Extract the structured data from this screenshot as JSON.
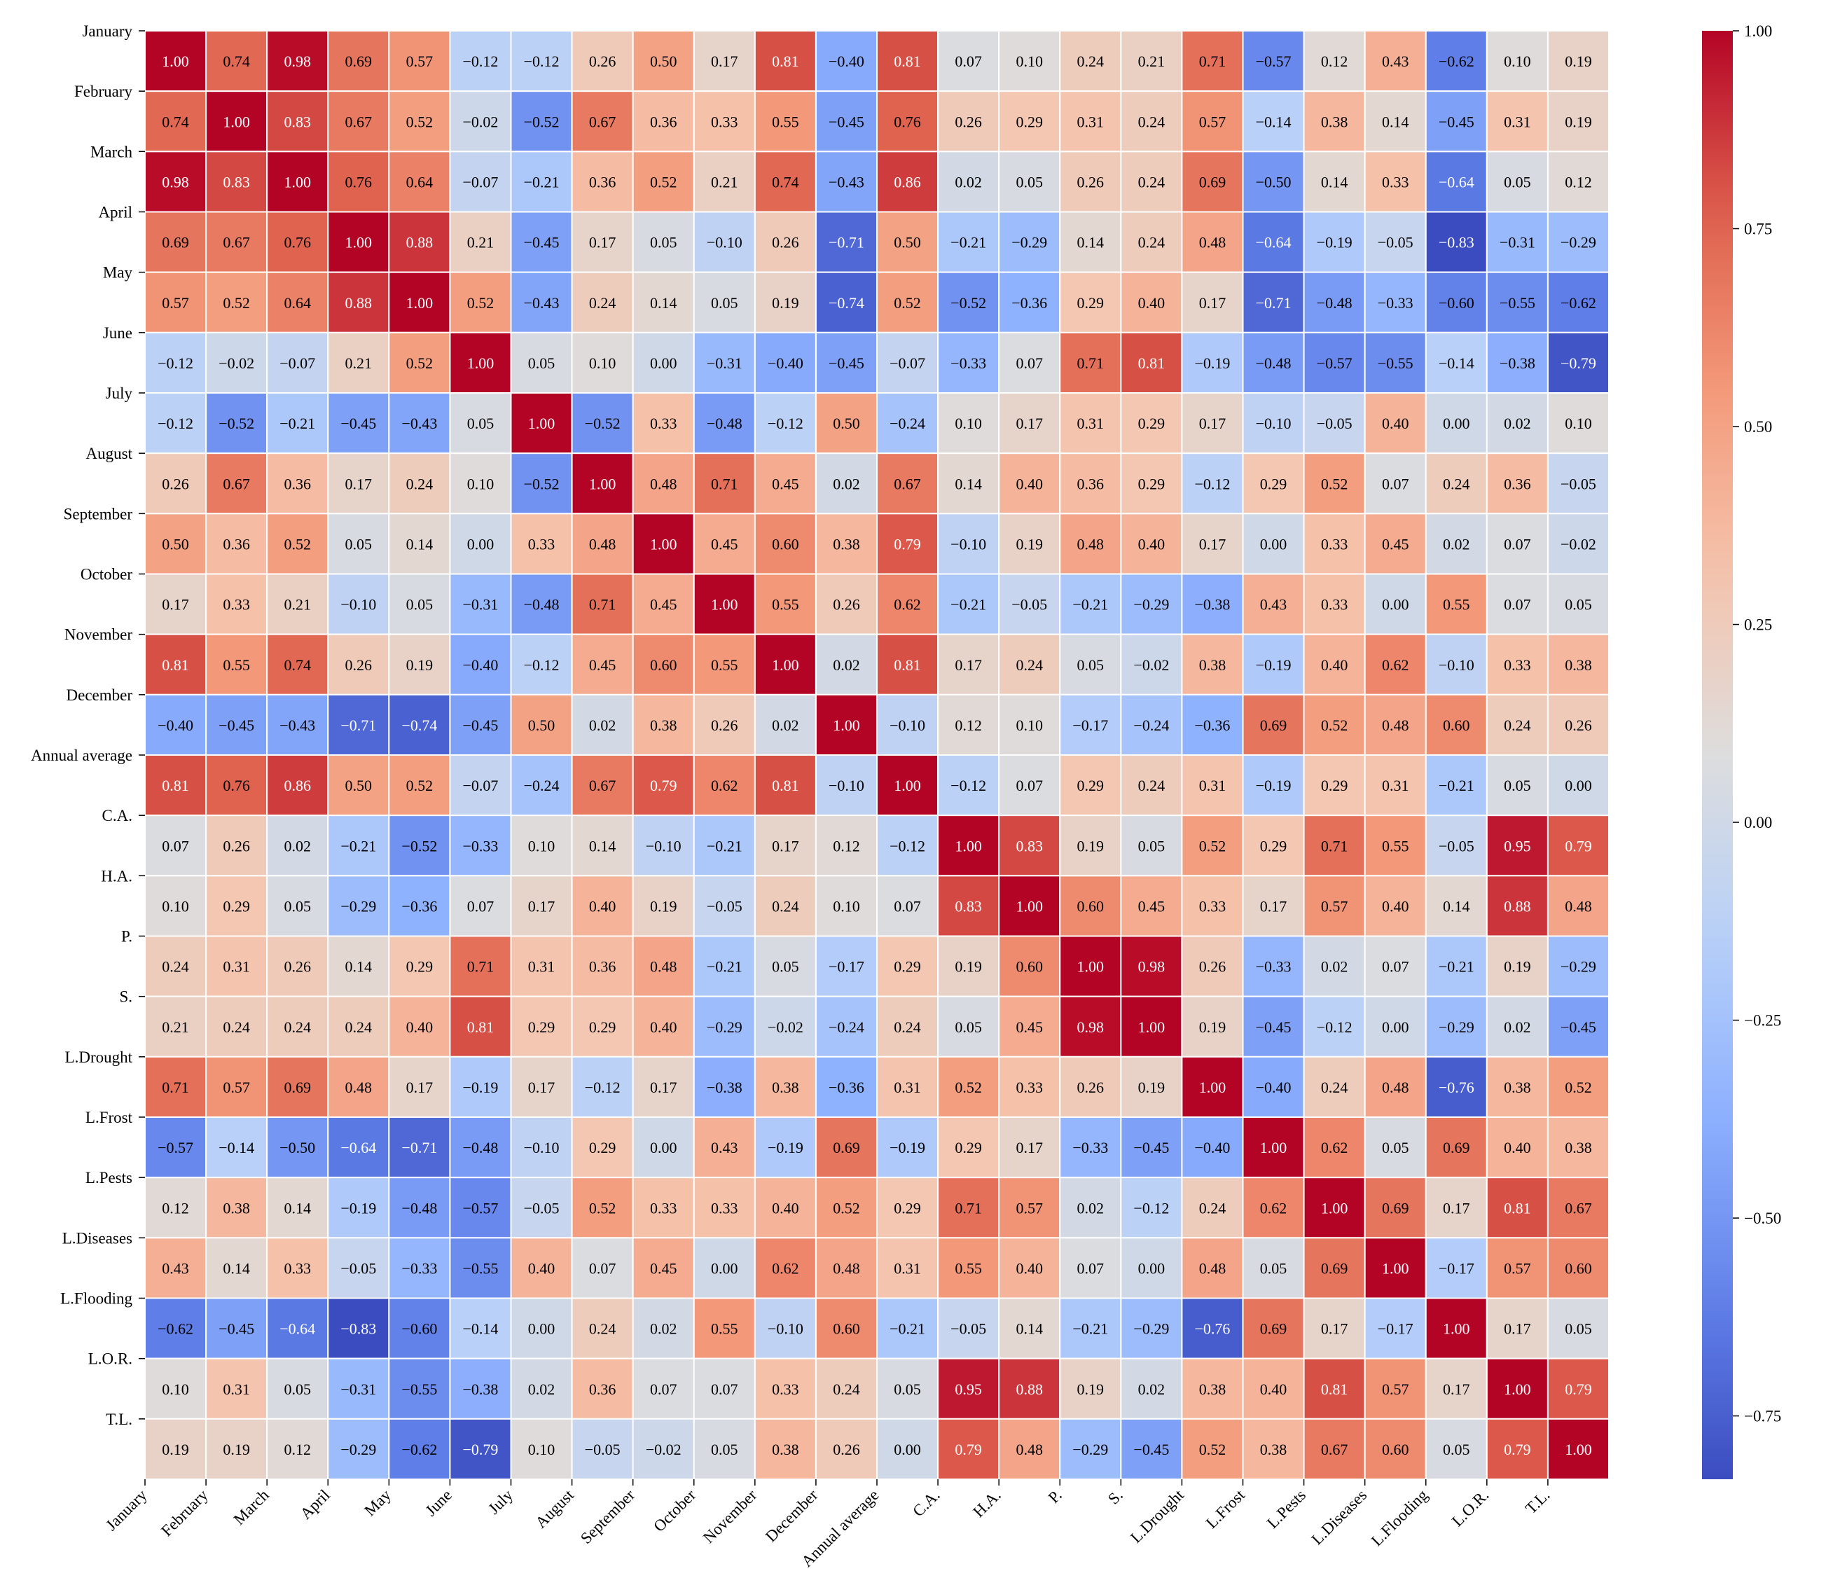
{
  "chart_data": {
    "type": "heatmap",
    "title": "",
    "xlabel": "",
    "ylabel": "",
    "labels": [
      "January",
      "February",
      "March",
      "April",
      "May",
      "June",
      "July",
      "August",
      "September",
      "October",
      "November",
      "December",
      "Annual average",
      "C.A.",
      "H.A.",
      "P.",
      "S.",
      "L.Drought",
      "L.Frost",
      "L.Pests",
      "L.Diseases",
      "L.Flooding",
      "L.O.R.",
      "T.L."
    ],
    "matrix": [
      [
        1.0,
        0.74,
        0.98,
        0.69,
        0.57,
        -0.12,
        -0.12,
        0.26,
        0.5,
        0.17,
        0.81,
        -0.4,
        0.81,
        0.07,
        0.1,
        0.24,
        0.21,
        0.71,
        -0.57,
        0.12,
        0.43,
        -0.62,
        0.1,
        0.19
      ],
      [
        0.74,
        1.0,
        0.83,
        0.67,
        0.52,
        -0.02,
        -0.52,
        0.67,
        0.36,
        0.33,
        0.55,
        -0.45,
        0.76,
        0.26,
        0.29,
        0.31,
        0.24,
        0.57,
        -0.14,
        0.38,
        0.14,
        -0.45,
        0.31,
        0.19
      ],
      [
        0.98,
        0.83,
        1.0,
        0.76,
        0.64,
        -0.07,
        -0.21,
        0.36,
        0.52,
        0.21,
        0.74,
        -0.43,
        0.86,
        0.02,
        0.05,
        0.26,
        0.24,
        0.69,
        -0.5,
        0.14,
        0.33,
        -0.64,
        0.05,
        0.12
      ],
      [
        0.69,
        0.67,
        0.76,
        1.0,
        0.88,
        0.21,
        -0.45,
        0.17,
        0.05,
        -0.1,
        0.26,
        -0.71,
        0.5,
        -0.21,
        -0.29,
        0.14,
        0.24,
        0.48,
        -0.64,
        -0.19,
        -0.05,
        -0.83,
        -0.31,
        -0.29
      ],
      [
        0.57,
        0.52,
        0.64,
        0.88,
        1.0,
        0.52,
        -0.43,
        0.24,
        0.14,
        0.05,
        0.19,
        -0.74,
        0.52,
        -0.52,
        -0.36,
        0.29,
        0.4,
        0.17,
        -0.71,
        -0.48,
        -0.33,
        -0.6,
        -0.55,
        -0.62
      ],
      [
        -0.12,
        -0.02,
        -0.07,
        0.21,
        0.52,
        1.0,
        0.05,
        0.1,
        0.0,
        -0.31,
        -0.4,
        -0.45,
        -0.07,
        -0.33,
        0.07,
        0.71,
        0.81,
        -0.19,
        -0.48,
        -0.57,
        -0.55,
        -0.14,
        -0.38,
        -0.79
      ],
      [
        -0.12,
        -0.52,
        -0.21,
        -0.45,
        -0.43,
        0.05,
        1.0,
        -0.52,
        0.33,
        -0.48,
        -0.12,
        0.5,
        -0.24,
        0.1,
        0.17,
        0.31,
        0.29,
        0.17,
        -0.1,
        -0.05,
        0.4,
        0.0,
        0.02,
        0.1
      ],
      [
        0.26,
        0.67,
        0.36,
        0.17,
        0.24,
        0.1,
        -0.52,
        1.0,
        0.48,
        0.71,
        0.45,
        0.02,
        0.67,
        0.14,
        0.4,
        0.36,
        0.29,
        -0.12,
        0.29,
        0.52,
        0.07,
        0.24,
        0.36,
        -0.05
      ],
      [
        0.5,
        0.36,
        0.52,
        0.05,
        0.14,
        0.0,
        0.33,
        0.48,
        1.0,
        0.45,
        0.6,
        0.38,
        0.79,
        -0.1,
        0.19,
        0.48,
        0.4,
        0.17,
        0.0,
        0.33,
        0.45,
        0.02,
        0.07,
        -0.02
      ],
      [
        0.17,
        0.33,
        0.21,
        -0.1,
        0.05,
        -0.31,
        -0.48,
        0.71,
        0.45,
        1.0,
        0.55,
        0.26,
        0.62,
        -0.21,
        -0.05,
        -0.21,
        -0.29,
        -0.38,
        0.43,
        0.33,
        0.0,
        0.55,
        0.07,
        0.05
      ],
      [
        0.81,
        0.55,
        0.74,
        0.26,
        0.19,
        -0.4,
        -0.12,
        0.45,
        0.6,
        0.55,
        1.0,
        0.02,
        0.81,
        0.17,
        0.24,
        0.05,
        -0.02,
        0.38,
        -0.19,
        0.4,
        0.62,
        -0.1,
        0.33,
        0.38
      ],
      [
        -0.4,
        -0.45,
        -0.43,
        -0.71,
        -0.74,
        -0.45,
        0.5,
        0.02,
        0.38,
        0.26,
        0.02,
        1.0,
        -0.1,
        0.12,
        0.1,
        -0.17,
        -0.24,
        -0.36,
        0.69,
        0.52,
        0.48,
        0.6,
        0.24,
        0.26
      ],
      [
        0.81,
        0.76,
        0.86,
        0.5,
        0.52,
        -0.07,
        -0.24,
        0.67,
        0.79,
        0.62,
        0.81,
        -0.1,
        1.0,
        -0.12,
        0.07,
        0.29,
        0.24,
        0.31,
        -0.19,
        0.29,
        0.31,
        -0.21,
        0.05,
        0.0
      ],
      [
        0.07,
        0.26,
        0.02,
        -0.21,
        -0.52,
        -0.33,
        0.1,
        0.14,
        -0.1,
        -0.21,
        0.17,
        0.12,
        -0.12,
        1.0,
        0.83,
        0.19,
        0.05,
        0.52,
        0.29,
        0.71,
        0.55,
        -0.05,
        0.95,
        0.79
      ],
      [
        0.1,
        0.29,
        0.05,
        -0.29,
        -0.36,
        0.07,
        0.17,
        0.4,
        0.19,
        -0.05,
        0.24,
        0.1,
        0.07,
        0.83,
        1.0,
        0.6,
        0.45,
        0.33,
        0.17,
        0.57,
        0.4,
        0.14,
        0.88,
        0.48
      ],
      [
        0.24,
        0.31,
        0.26,
        0.14,
        0.29,
        0.71,
        0.31,
        0.36,
        0.48,
        -0.21,
        0.05,
        -0.17,
        0.29,
        0.19,
        0.6,
        1.0,
        0.98,
        0.26,
        -0.33,
        0.02,
        0.07,
        -0.21,
        0.19,
        -0.29
      ],
      [
        0.21,
        0.24,
        0.24,
        0.24,
        0.4,
        0.81,
        0.29,
        0.29,
        0.4,
        -0.29,
        -0.02,
        -0.24,
        0.24,
        0.05,
        0.45,
        0.98,
        1.0,
        0.19,
        -0.45,
        -0.12,
        0.0,
        -0.29,
        0.02,
        -0.45
      ],
      [
        0.71,
        0.57,
        0.69,
        0.48,
        0.17,
        -0.19,
        0.17,
        -0.12,
        0.17,
        -0.38,
        0.38,
        -0.36,
        0.31,
        0.52,
        0.33,
        0.26,
        0.19,
        1.0,
        -0.4,
        0.24,
        0.48,
        -0.76,
        0.38,
        0.52
      ],
      [
        -0.57,
        -0.14,
        -0.5,
        -0.64,
        -0.71,
        -0.48,
        -0.1,
        0.29,
        0.0,
        0.43,
        -0.19,
        0.69,
        -0.19,
        0.29,
        0.17,
        -0.33,
        -0.45,
        -0.4,
        1.0,
        0.62,
        0.05,
        0.69,
        0.4,
        0.38
      ],
      [
        0.12,
        0.38,
        0.14,
        -0.19,
        -0.48,
        -0.57,
        -0.05,
        0.52,
        0.33,
        0.33,
        0.4,
        0.52,
        0.29,
        0.71,
        0.57,
        0.02,
        -0.12,
        0.24,
        0.62,
        1.0,
        0.69,
        0.17,
        0.81,
        0.67
      ],
      [
        0.43,
        0.14,
        0.33,
        -0.05,
        -0.33,
        -0.55,
        0.4,
        0.07,
        0.45,
        0.0,
        0.62,
        0.48,
        0.31,
        0.55,
        0.4,
        0.07,
        0.0,
        0.48,
        0.05,
        0.69,
        1.0,
        -0.17,
        0.57,
        0.6
      ],
      [
        -0.62,
        -0.45,
        -0.64,
        -0.83,
        -0.6,
        -0.14,
        0.0,
        0.24,
        0.02,
        0.55,
        -0.1,
        0.6,
        -0.21,
        -0.05,
        0.14,
        -0.21,
        -0.29,
        -0.76,
        0.69,
        0.17,
        -0.17,
        1.0,
        0.17,
        0.05
      ],
      [
        0.1,
        0.31,
        0.05,
        -0.31,
        -0.55,
        -0.38,
        0.02,
        0.36,
        0.07,
        0.07,
        0.33,
        0.24,
        0.05,
        0.95,
        0.88,
        0.19,
        0.02,
        0.38,
        0.4,
        0.81,
        0.57,
        0.17,
        1.0,
        0.79
      ],
      [
        0.19,
        0.19,
        0.12,
        -0.29,
        -0.62,
        -0.79,
        0.1,
        -0.05,
        -0.02,
        0.05,
        0.38,
        0.26,
        0.0,
        0.79,
        0.48,
        -0.29,
        -0.45,
        0.52,
        0.38,
        0.67,
        0.6,
        0.05,
        0.79,
        1.0
      ]
    ],
    "value_format": "2 decimals",
    "colormap": "coolwarm",
    "vmin": -0.83,
    "vmax": 1.0,
    "colorbar": {
      "ticks": [
        1.0,
        0.75,
        0.5,
        0.25,
        0.0,
        -0.25,
        -0.5,
        -0.75
      ],
      "tick_labels": [
        "1.00",
        "0.75",
        "0.50",
        "0.25",
        "0.00",
        "−0.25",
        "−0.50",
        "−0.75"
      ],
      "placement": "right"
    },
    "grid": false,
    "x_tick_rotation_deg": 45
  },
  "colors": {
    "cold": "#3b4cc0",
    "mid": "#dddddd",
    "warm": "#b40426",
    "text_dark": "#000000",
    "text_light": "#ffffff",
    "cell_border": "#ffffff"
  }
}
